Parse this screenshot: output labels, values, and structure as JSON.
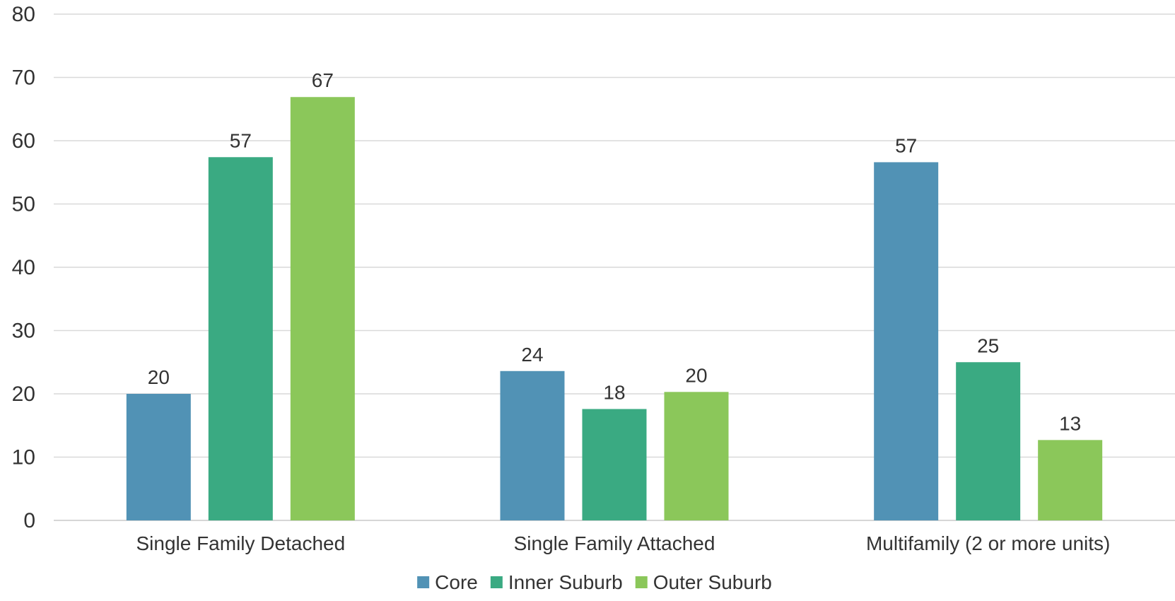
{
  "chart_data": {
    "type": "bar",
    "title": "",
    "xlabel": "",
    "ylabel": "",
    "ylim": [
      0,
      80
    ],
    "yticks": [
      "0",
      "10",
      "20",
      "30",
      "40",
      "50",
      "60",
      "70",
      "80"
    ],
    "grid": true,
    "legend_position": "bottom",
    "categories": [
      "Single Family Detached",
      "Single Family Attached",
      "Multifamily (2 or more units)"
    ],
    "series": [
      {
        "name": "Core",
        "color": "#5192b5",
        "values": [
          20,
          23.6,
          56.6
        ],
        "labels": [
          "20",
          "24",
          "57"
        ]
      },
      {
        "name": "Inner Suburb",
        "color": "#3aaa82",
        "values": [
          57.4,
          17.6,
          25
        ],
        "labels": [
          "57",
          "18",
          "25"
        ]
      },
      {
        "name": "Outer Suburb",
        "color": "#8bc75a",
        "values": [
          66.9,
          20.3,
          12.7
        ],
        "labels": [
          "67",
          "20",
          "13"
        ]
      }
    ]
  }
}
